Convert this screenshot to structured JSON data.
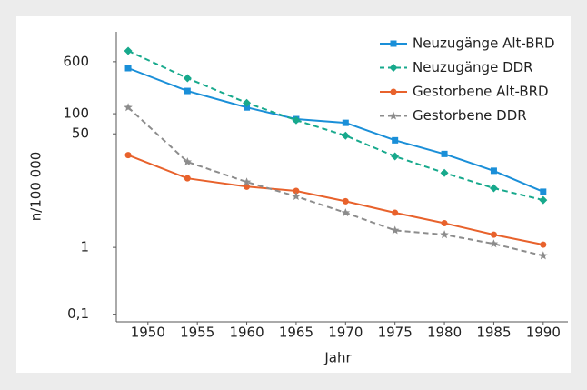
{
  "chart_data": {
    "type": "line",
    "x_label": "Jahr",
    "y_label": "n/100 000",
    "y_scale": "log",
    "legend": "top-right",
    "xlim": [
      1946.8,
      1992.5
    ],
    "xticks": [
      1950,
      1955,
      1960,
      1965,
      1970,
      1975,
      1980,
      1985,
      1990
    ],
    "ylim": [
      0.077,
      1680
    ],
    "yticks": [
      {
        "value": 0.1,
        "label": "0,1"
      },
      1,
      50,
      100,
      600
    ],
    "x": [
      1948,
      1954,
      1960,
      1965,
      1970,
      1975,
      1980,
      1985,
      1990
    ],
    "series": [
      {
        "name": "Neuzugänge Alt-BRD",
        "color": "#1a8fd8",
        "dashed": false,
        "marker": "square",
        "values": [
          480,
          219,
          124,
          83,
          73,
          40,
          25,
          14,
          6.8
        ]
      },
      {
        "name": "Neuzugänge DDR",
        "color": "#17a98c",
        "dashed": true,
        "marker": "diamond",
        "values": [
          870,
          340,
          145,
          80,
          47,
          23,
          13,
          7.7,
          5.1
        ]
      },
      {
        "name": "Gestorbene Alt-BRD",
        "color": "#e8622c",
        "dashed": false,
        "marker": "circle",
        "values": [
          24,
          10.8,
          8.1,
          7.0,
          4.9,
          3.3,
          2.3,
          1.55,
          1.1
        ]
      },
      {
        "name": "Gestorbene DDR",
        "color": "#8c8c8c",
        "dashed": true,
        "marker": "star",
        "values": [
          124,
          19,
          9.5,
          5.8,
          3.3,
          1.8,
          1.55,
          1.13,
          0.75
        ]
      }
    ]
  }
}
